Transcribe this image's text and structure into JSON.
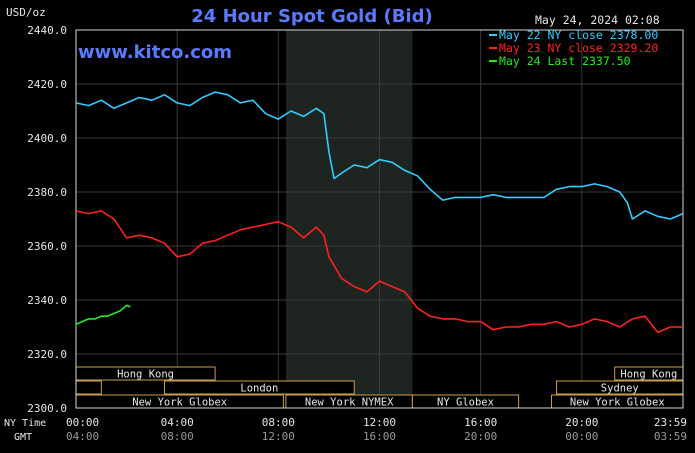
{
  "header": {
    "title": "24 Hour Spot Gold (Bid)",
    "unit": "USD/oz",
    "timestamp": "May 24, 2024 02:08",
    "watermark": "www.kitco.com"
  },
  "legend": [
    {
      "text": "May 22 NY close 2378.00",
      "color": "#33ccff"
    },
    {
      "text": "May 23 NY close 2329.20",
      "color": "#ff2222"
    },
    {
      "text": "May 24 Last 2337.50",
      "color": "#22ee22"
    }
  ],
  "time_rows": {
    "ny_label": "NY Time",
    "gmt_label": "GMT",
    "ny_ticks": [
      "00:00",
      "04:00",
      "08:00",
      "12:00",
      "16:00",
      "20:00",
      "23:59"
    ],
    "gmt_ticks": [
      "04:00",
      "08:00",
      "12:00",
      "16:00",
      "20:00",
      "00:00",
      "03:59"
    ]
  },
  "sessions": {
    "hong_kong": "Hong Kong",
    "london": "London",
    "new_york_globex": "New York Globex",
    "new_york_nymex": "New York NYMEX",
    "ny_globex": "NY Globex",
    "hong_kong_late": "Hong Kong",
    "sydney": "Sydney",
    "new_york_globex_late": "New York Globex"
  },
  "chart_data": {
    "type": "line",
    "title": "24 Hour Spot Gold (Bid)",
    "ylabel": "USD/oz",
    "xlabel": "",
    "y_ticks": [
      "2440.0",
      "2420.0",
      "2400.0",
      "2380.0",
      "2360.0",
      "2340.0",
      "2320.0",
      "2300.0"
    ],
    "ylim": [
      2300,
      2440
    ],
    "xlim": [
      0,
      24
    ],
    "highlight_hours": [
      8.3,
      13.3
    ],
    "grid": true,
    "legend_position": "top-right",
    "series": [
      {
        "name": "May 22 NY close 2378.00",
        "color": "#33ccff",
        "x": [
          0,
          0.5,
          1,
          1.5,
          2,
          2.5,
          3,
          3.5,
          4,
          4.5,
          5,
          5.5,
          6,
          6.5,
          7,
          7.5,
          8,
          8.5,
          9,
          9.5,
          9.8,
          10,
          10.2,
          10.5,
          11,
          11.5,
          12,
          12.5,
          13,
          13.5,
          14,
          14.5,
          15,
          15.5,
          16,
          16.5,
          17,
          17.5,
          18,
          18.5,
          19,
          19.5,
          20,
          20.5,
          21,
          21.5,
          21.8,
          22,
          22.5,
          23,
          23.5,
          24
        ],
        "y": [
          2413,
          2412,
          2414,
          2411,
          2413,
          2415,
          2414,
          2416,
          2413,
          2412,
          2415,
          2417,
          2416,
          2413,
          2414,
          2409,
          2407,
          2410,
          2408,
          2411,
          2409,
          2395,
          2385,
          2387,
          2390,
          2389,
          2392,
          2391,
          2388,
          2386,
          2381,
          2377,
          2378,
          2378,
          2378,
          2379,
          2378,
          2378,
          2378,
          2378,
          2381,
          2382,
          2382,
          2383,
          2382,
          2380,
          2376,
          2370,
          2373,
          2371,
          2370,
          2372
        ]
      },
      {
        "name": "May 23 NY close 2329.20",
        "color": "#ff2222",
        "x": [
          0,
          0.5,
          1,
          1.5,
          2,
          2.5,
          3,
          3.5,
          4,
          4.5,
          5,
          5.5,
          6,
          6.5,
          7,
          7.5,
          8,
          8.5,
          9,
          9.5,
          9.8,
          10,
          10.5,
          11,
          11.5,
          12,
          12.5,
          13,
          13.5,
          14,
          14.5,
          15,
          15.5,
          16,
          16.5,
          17,
          17.5,
          18,
          18.5,
          19,
          19.5,
          20,
          20.5,
          21,
          21.5,
          22,
          22.5,
          23,
          23.5,
          24
        ],
        "y": [
          2373,
          2372,
          2373,
          2370,
          2363,
          2364,
          2363,
          2361,
          2356,
          2357,
          2361,
          2362,
          2364,
          2366,
          2367,
          2368,
          2369,
          2367,
          2363,
          2367,
          2364,
          2356,
          2348,
          2345,
          2343,
          2347,
          2345,
          2343,
          2337,
          2334,
          2333,
          2333,
          2332,
          2332,
          2329,
          2330,
          2330,
          2331,
          2331,
          2332,
          2330,
          2331,
          2333,
          2332,
          2330,
          2333,
          2334,
          2328,
          2330,
          2330
        ]
      },
      {
        "name": "May 24 Last 2337.50",
        "color": "#22ee22",
        "x": [
          0,
          0.25,
          0.5,
          0.75,
          1,
          1.25,
          1.5,
          1.75,
          2,
          2.15
        ],
        "y": [
          2331,
          2332,
          2333,
          2333,
          2334,
          2334,
          2335,
          2336,
          2338,
          2337.5
        ]
      }
    ]
  }
}
